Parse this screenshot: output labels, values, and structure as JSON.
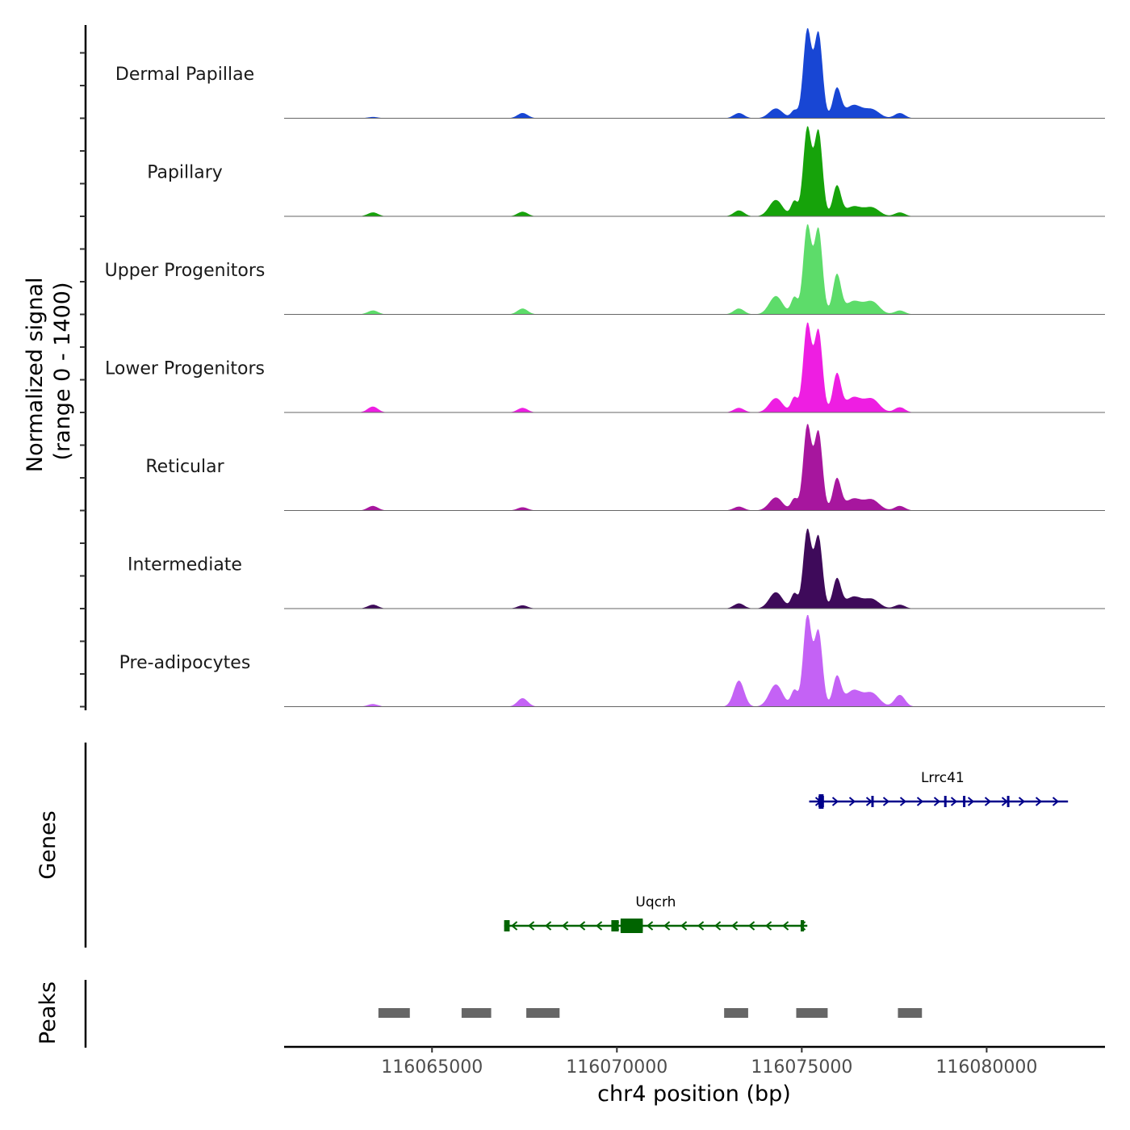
{
  "chart_data": {
    "type": "area",
    "chromosome": "chr4",
    "xlabel": "chr4 position (bp)",
    "ylabel": "Normalized signal",
    "ylabel_range": "(range 0 - 1400)",
    "xlim": [
      116061000,
      116083200
    ],
    "ylim": [
      0,
      1400
    ],
    "x_ticks": [
      116065000,
      116070000,
      116075000,
      116080000
    ],
    "x_tick_labels": [
      "116065000",
      "116070000",
      "116075000",
      "116080000"
    ],
    "tracks": [
      {
        "name": "Dermal Papillae",
        "color": "#1846d4"
      },
      {
        "name": "Papillary",
        "color": "#16a30a"
      },
      {
        "name": "Upper Progenitors",
        "color": "#5ddc6a"
      },
      {
        "name": "Lower Progenitors",
        "color": "#ee1ee2"
      },
      {
        "name": "Reticular",
        "color": "#a7169e"
      },
      {
        "name": "Intermediate",
        "color": "#3e0a5a"
      },
      {
        "name": "Pre-adipocytes",
        "color": "#c462f5"
      }
    ],
    "peak_shape": [
      {
        "pos": 116063400,
        "w": 140
      },
      {
        "pos": 116067450,
        "w": 140
      },
      {
        "pos": 116073300,
        "w": 140
      },
      {
        "pos": 116074300,
        "w": 180
      },
      {
        "pos": 116074800,
        "w": 90
      },
      {
        "pos": 116075150,
        "w": 110
      },
      {
        "pos": 116075450,
        "w": 110
      },
      {
        "pos": 116075950,
        "w": 110
      },
      {
        "pos": 116076400,
        "w": 220
      },
      {
        "pos": 116076900,
        "w": 200
      },
      {
        "pos": 116077650,
        "w": 140
      }
    ],
    "peak_heights": [
      [
        20,
        80,
        80,
        150,
        120,
        1350,
        1300,
        450,
        200,
        130,
        80
      ],
      [
        60,
        70,
        90,
        250,
        230,
        1350,
        1300,
        460,
        150,
        130,
        60
      ],
      [
        60,
        90,
        90,
        280,
        260,
        1350,
        1300,
        600,
        200,
        190,
        60
      ],
      [
        90,
        70,
        70,
        220,
        230,
        1350,
        1250,
        580,
        230,
        200,
        80
      ],
      [
        70,
        50,
        60,
        200,
        180,
        1300,
        1200,
        480,
        180,
        160,
        70
      ],
      [
        60,
        50,
        80,
        250,
        230,
        1200,
        1100,
        450,
        180,
        140,
        60
      ],
      [
        40,
        130,
        400,
        340,
        250,
        1400,
        1150,
        450,
        250,
        200,
        180
      ]
    ],
    "genes": [
      {
        "name": "Lrrc41",
        "strand": "+",
        "start": 116075200,
        "end": 116082200,
        "color": "#00008b",
        "row": 0,
        "exons": [
          [
            116075450,
            116075600
          ],
          [
            116076880,
            116076940
          ],
          [
            116078850,
            116078910
          ],
          [
            116079360,
            116079420
          ],
          [
            116080550,
            116080610
          ]
        ],
        "cds": [
          [
            116075460,
            116075590
          ]
        ]
      },
      {
        "name": "Uqcrh",
        "strand": "-",
        "start": 116066950,
        "end": 116075150,
        "color": "#006400",
        "row": 1,
        "exons": [
          [
            116066950,
            116067100
          ],
          [
            116069850,
            116070050
          ],
          [
            116070100,
            116070700
          ],
          [
            116074970,
            116075060
          ]
        ],
        "cds": [
          [
            116070100,
            116070700
          ]
        ]
      }
    ],
    "gene_track_label": "Genes",
    "peaks_track_label": "Peaks",
    "peak_color": "#666666",
    "peaks": [
      [
        116063550,
        116064400
      ],
      [
        116065800,
        116066600
      ],
      [
        116067550,
        116068450
      ],
      [
        116072900,
        116073550
      ],
      [
        116074850,
        116075700
      ],
      [
        116077600,
        116078250
      ]
    ]
  }
}
